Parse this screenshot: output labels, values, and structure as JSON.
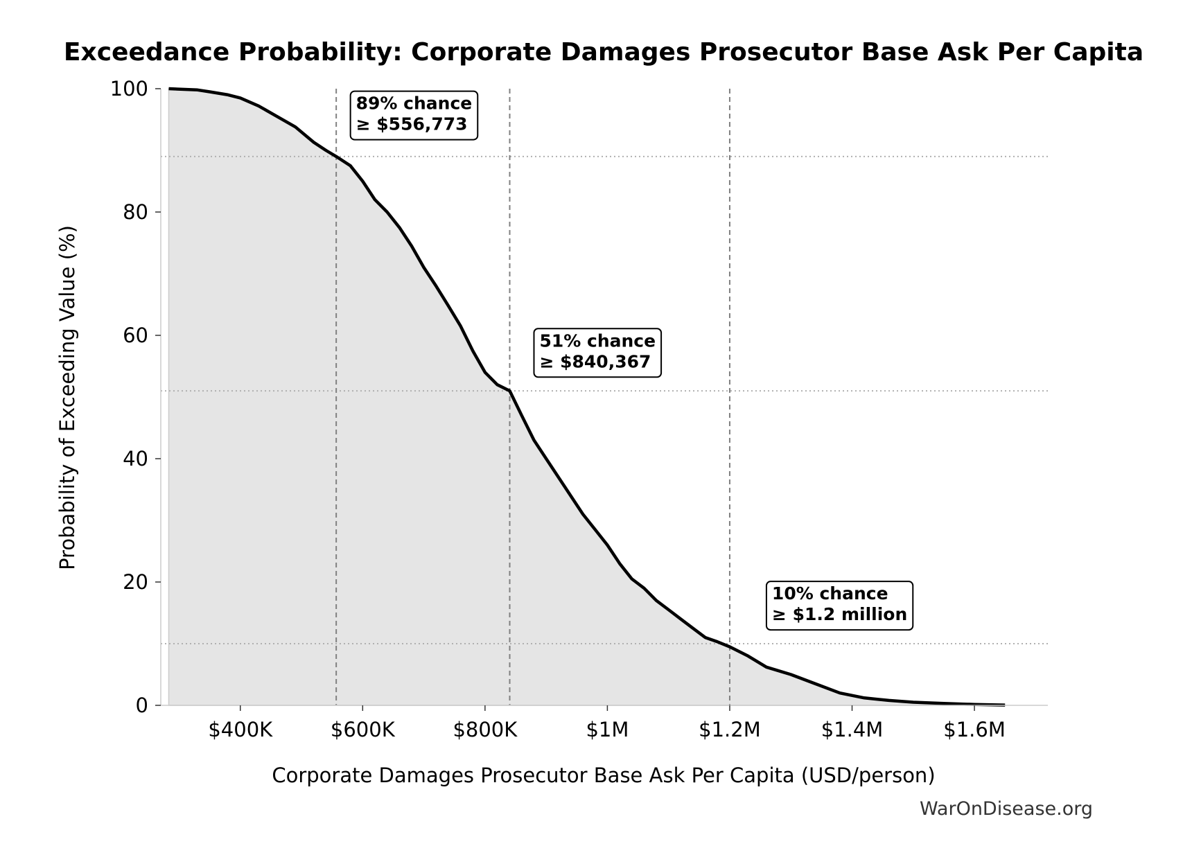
{
  "chart_data": {
    "type": "area",
    "title": "Exceedance Probability: Corporate Damages Prosecutor Base Ask Per Capita",
    "xlabel": "Corporate Damages Prosecutor Base Ask Per Capita (USD/person)",
    "ylabel": "Probability of Exceeding Value (%)",
    "xlim": [
      270000,
      1720000
    ],
    "ylim": [
      0,
      100
    ],
    "x_ticks": [
      {
        "value": 400000,
        "label": "$400K"
      },
      {
        "value": 600000,
        "label": "$600K"
      },
      {
        "value": 800000,
        "label": "$800K"
      },
      {
        "value": 1000000,
        "label": "$1M"
      },
      {
        "value": 1200000,
        "label": "$1.2M"
      },
      {
        "value": 1400000,
        "label": "$1.4M"
      },
      {
        "value": 1600000,
        "label": "$1.6M"
      }
    ],
    "y_ticks": [
      {
        "value": 0,
        "label": "0"
      },
      {
        "value": 20,
        "label": "20"
      },
      {
        "value": 40,
        "label": "40"
      },
      {
        "value": 60,
        "label": "60"
      },
      {
        "value": 80,
        "label": "80"
      },
      {
        "value": 100,
        "label": "100"
      }
    ],
    "grid": false,
    "series": [
      {
        "x": [
          283000,
          330000,
          350000,
          380000,
          400000,
          430000,
          460000,
          490000,
          520000,
          540000,
          556773,
          580000,
          600000,
          620000,
          640000,
          660000,
          680000,
          700000,
          720000,
          740000,
          760000,
          780000,
          800000,
          820000,
          840367,
          860000,
          880000,
          900000,
          920000,
          940000,
          960000,
          980000,
          1000000,
          1020000,
          1040000,
          1060000,
          1080000,
          1100000,
          1120000,
          1140000,
          1160000,
          1180000,
          1200000,
          1230000,
          1260000,
          1300000,
          1340000,
          1380000,
          1420000,
          1460000,
          1500000,
          1550000,
          1600000,
          1650000
        ],
        "y": [
          100,
          99.8,
          99.5,
          99,
          98.5,
          97.2,
          95.5,
          93.8,
          91.3,
          90,
          89,
          87.5,
          85,
          82,
          80,
          77.5,
          74.5,
          71,
          68,
          64.8,
          61.5,
          57.5,
          54,
          52,
          51,
          47,
          43,
          40,
          37,
          34,
          31,
          28.5,
          26,
          23,
          20.5,
          19,
          17,
          15.5,
          14,
          12.5,
          11,
          10.3,
          9.5,
          8,
          6.2,
          5,
          3.5,
          2,
          1.2,
          0.8,
          0.5,
          0.3,
          0.15,
          0.05
        ]
      }
    ],
    "threshold_y": [
      89,
      51,
      10
    ],
    "threshold_x": [
      556773,
      840367,
      1200000
    ],
    "annotations": [
      {
        "line1": "89% chance",
        "line2": "≥ $556,773",
        "x": 580000,
        "y": 96
      },
      {
        "line1": "51% chance",
        "line2": "≥ $840,367",
        "x": 880000,
        "y": 57.5
      },
      {
        "line1": "10% chance",
        "line2": "≥ $1.2 million",
        "x": 1260000,
        "y": 16.5
      }
    ],
    "colors": {
      "line": "#000000",
      "fill": "#e5e5e5",
      "vline": "#808080",
      "hline": "#b0b0b0"
    }
  },
  "watermark": "WarOnDisease.org"
}
